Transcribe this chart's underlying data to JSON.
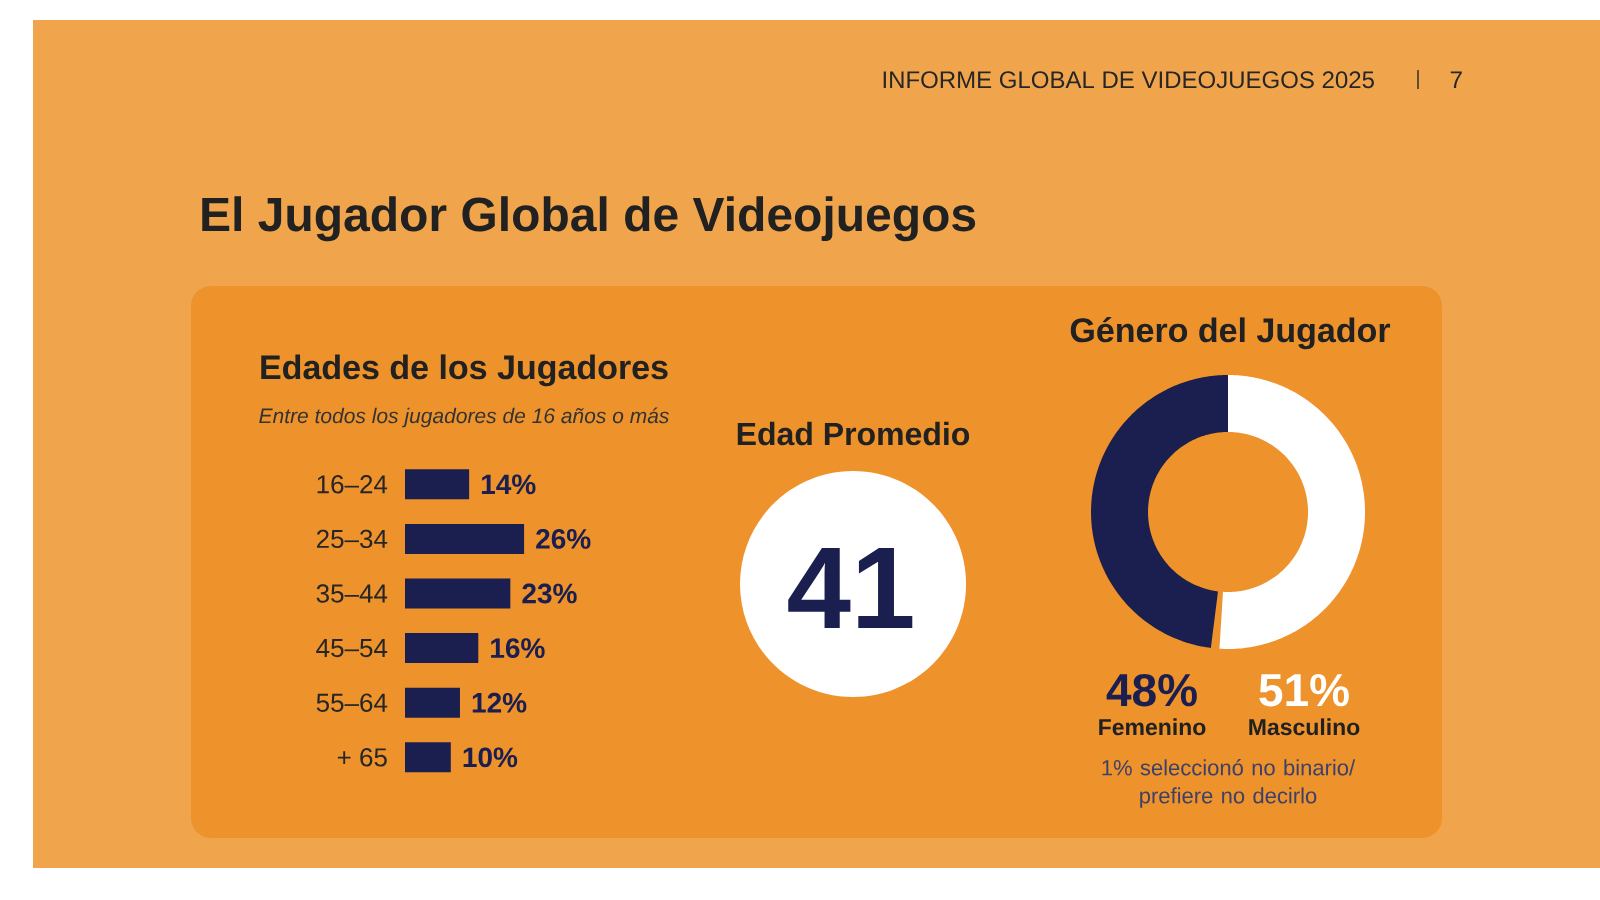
{
  "chart_data": [
    {
      "type": "other",
      "title": "El Jugador Global de Videojuegos",
      "annotations": [
        "INFORME GLOBAL DE VIDEOJUEGOS 2025",
        "7"
      ]
    },
    {
      "type": "bar",
      "orientation": "horizontal",
      "title": "Edades de los Jugadores",
      "subtitle": "Entre todos los jugadores de 16 años o más",
      "categories": [
        "16–24",
        "25–34",
        "35–44",
        "45–54",
        "55–64",
        "+ 65"
      ],
      "values": [
        14,
        26,
        23,
        16,
        12,
        10
      ],
      "value_labels": [
        "14%",
        "26%",
        "23%",
        "16%",
        "12%",
        "10%"
      ],
      "color": "#1b1f4f"
    },
    {
      "type": "other",
      "title": "Edad Promedio",
      "annotations": [
        "41"
      ]
    },
    {
      "type": "donut",
      "title": "Género del Jugador",
      "categories": [
        "Femenino",
        "Masculino"
      ],
      "values": [
        48,
        51
      ],
      "value_labels": [
        "48%",
        "51%"
      ],
      "colors": [
        "#1b1f4f",
        "#ffffff"
      ],
      "annotations": [
        "1% seleccionó no binario/ prefiere no decirlo"
      ]
    }
  ]
}
